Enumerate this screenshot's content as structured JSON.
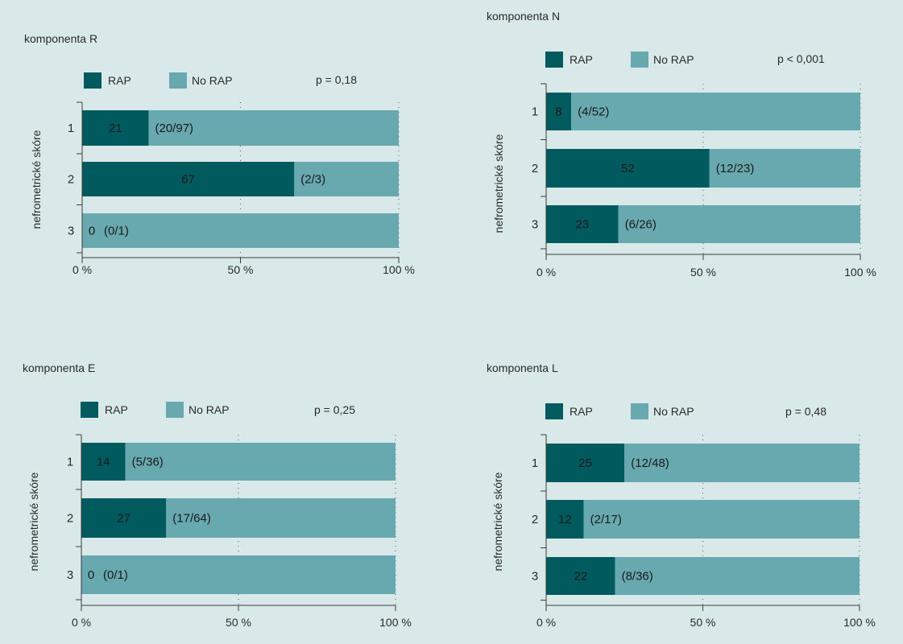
{
  "legend": {
    "rap": "RAP",
    "norap": "No RAP"
  },
  "colors": {
    "rap": "#005a5e",
    "norap": "#68a9b0",
    "background": "#d9e9ea",
    "axis": "#3a3a3a"
  },
  "chart_data": [
    {
      "type": "bar",
      "stacked": true,
      "orientation": "horizontal",
      "title": "komponenta R",
      "ylabel": "nefrometrické skóre",
      "categories": [
        "1",
        "2",
        "3"
      ],
      "series": [
        {
          "name": "RAP",
          "values": [
            21,
            67,
            0
          ]
        },
        {
          "name": "No RAP",
          "values": [
            79,
            33,
            100
          ]
        }
      ],
      "counts": [
        "(20/97)",
        "(2/3)",
        "(0/1)"
      ],
      "p_value": "p = 0,18",
      "xlim": [
        0,
        100
      ],
      "xticks": [
        "0 %",
        "50 %",
        "100 %"
      ],
      "legend": "top"
    },
    {
      "type": "bar",
      "stacked": true,
      "orientation": "horizontal",
      "title": "komponenta N",
      "ylabel": "nefrometrické skóre",
      "categories": [
        "1",
        "2",
        "3"
      ],
      "series": [
        {
          "name": "RAP",
          "values": [
            8,
            52,
            23
          ]
        },
        {
          "name": "No RAP",
          "values": [
            92,
            48,
            77
          ]
        }
      ],
      "counts": [
        "(4/52)",
        "(12/23)",
        "(6/26)"
      ],
      "p_value": "p < 0,001",
      "xlim": [
        0,
        100
      ],
      "xticks": [
        "0 %",
        "50 %",
        "100 %"
      ],
      "legend": "top"
    },
    {
      "type": "bar",
      "stacked": true,
      "orientation": "horizontal",
      "title": "komponenta E",
      "ylabel": "nefrometrické skóre",
      "categories": [
        "1",
        "2",
        "3"
      ],
      "series": [
        {
          "name": "RAP",
          "values": [
            14,
            27,
            0
          ]
        },
        {
          "name": "No RAP",
          "values": [
            86,
            73,
            100
          ]
        }
      ],
      "counts": [
        "(5/36)",
        "(17/64)",
        "(0/1)"
      ],
      "p_value": "p = 0,25",
      "xlim": [
        0,
        100
      ],
      "xticks": [
        "0 %",
        "50 %",
        "100 %"
      ],
      "legend": "top"
    },
    {
      "type": "bar",
      "stacked": true,
      "orientation": "horizontal",
      "title": "komponenta L",
      "ylabel": "nefrometrické skóre",
      "categories": [
        "1",
        "2",
        "3"
      ],
      "series": [
        {
          "name": "RAP",
          "values": [
            25,
            12,
            22
          ]
        },
        {
          "name": "No RAP",
          "values": [
            75,
            88,
            78
          ]
        }
      ],
      "counts": [
        "(12/48)",
        "(2/17)",
        "(8/36)"
      ],
      "p_value": "p = 0,48",
      "xlim": [
        0,
        100
      ],
      "xticks": [
        "0 %",
        "50 %",
        "100 %"
      ],
      "legend": "top"
    }
  ]
}
